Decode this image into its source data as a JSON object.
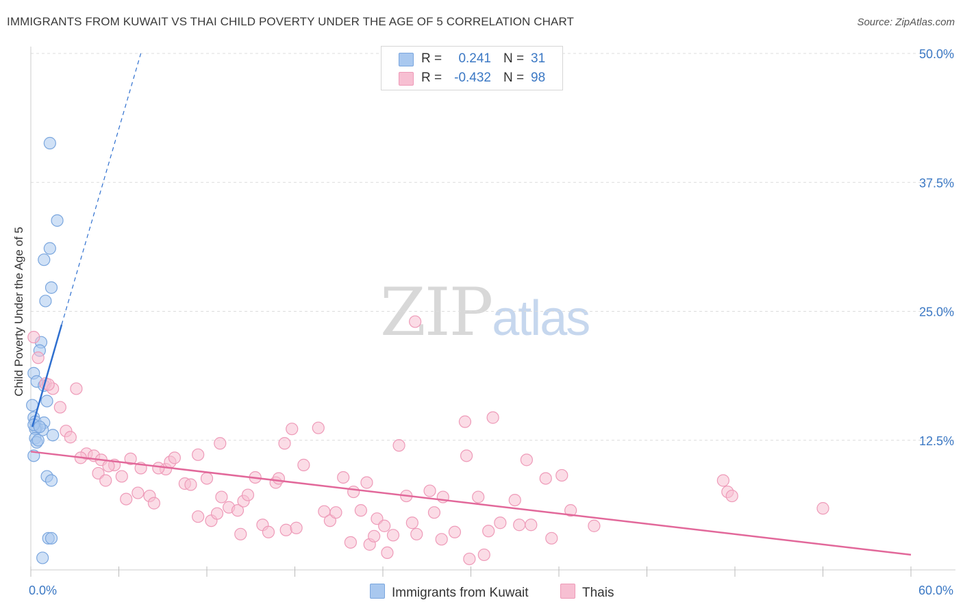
{
  "title": "IMMIGRANTS FROM KUWAIT VS THAI CHILD POVERTY UNDER THE AGE OF 5 CORRELATION CHART",
  "source": "Source: ZipAtlas.com",
  "watermark": {
    "zip": "ZIP",
    "atlas": "atlas"
  },
  "legend": {
    "rows": [
      {
        "r_label": "R =",
        "r_value": "0.241",
        "n_label": "N =",
        "n_value": "31",
        "color": "#a9c8ef",
        "stroke": "#7aa6de"
      },
      {
        "r_label": "R =",
        "r_value": "-0.432",
        "n_label": "N =",
        "n_value": "98",
        "color": "#f7bfd2",
        "stroke": "#ee9ab8"
      }
    ]
  },
  "bottom_legend": [
    {
      "label": "Immigrants from Kuwait",
      "color": "#a9c8ef",
      "stroke": "#7aa6de"
    },
    {
      "label": "Thais",
      "color": "#f7bfd2",
      "stroke": "#ee9ab8"
    }
  ],
  "chart_data": {
    "type": "scatter",
    "title": "IMMIGRANTS FROM KUWAIT VS THAI CHILD POVERTY UNDER THE AGE OF 5 CORRELATION CHART",
    "xlabel": "",
    "ylabel": "Child Poverty Under the Age of 5",
    "xlim": [
      0,
      60
    ],
    "ylim": [
      0,
      50
    ],
    "x_tick_labels": {
      "left": "0.0%",
      "right": "60.0%"
    },
    "y_ticks": [
      {
        "value": 12.5,
        "label": "12.5%"
      },
      {
        "value": 25.0,
        "label": "25.0%"
      },
      {
        "value": 37.5,
        "label": "37.5%"
      },
      {
        "value": 50.0,
        "label": "50.0%"
      }
    ],
    "x_tick_marks": [
      0,
      6,
      12,
      18,
      24,
      30,
      36,
      42,
      48,
      54,
      60
    ],
    "grid": true,
    "series": [
      {
        "name": "Immigrants from Kuwait",
        "color": "#a9c8ef",
        "stroke": "#7aa6de",
        "line_color": "#2e6fcf",
        "trend": {
          "solid": [
            [
              0.1,
              13.8
            ],
            [
              2.1,
              23.7
            ]
          ],
          "dashed": [
            [
              2.1,
              23.7
            ],
            [
              7.5,
              50.0
            ]
          ]
        },
        "points": [
          [
            1.3,
            41.3
          ],
          [
            1.8,
            33.8
          ],
          [
            1.3,
            31.1
          ],
          [
            0.9,
            30.0
          ],
          [
            1.4,
            27.3
          ],
          [
            1.0,
            26.0
          ],
          [
            0.7,
            22.0
          ],
          [
            0.6,
            21.2
          ],
          [
            0.2,
            19.0
          ],
          [
            0.4,
            18.2
          ],
          [
            0.9,
            17.8
          ],
          [
            1.1,
            16.3
          ],
          [
            0.1,
            15.9
          ],
          [
            0.2,
            14.7
          ],
          [
            0.3,
            14.3
          ],
          [
            0.9,
            14.2
          ],
          [
            0.4,
            13.7
          ],
          [
            0.8,
            13.5
          ],
          [
            0.3,
            13.6
          ],
          [
            1.5,
            13.0
          ],
          [
            0.3,
            12.7
          ],
          [
            0.4,
            12.3
          ],
          [
            0.2,
            11.0
          ],
          [
            1.1,
            9.0
          ],
          [
            1.4,
            8.6
          ],
          [
            1.2,
            3.0
          ],
          [
            1.4,
            3.0
          ],
          [
            0.8,
            1.1
          ],
          [
            0.5,
            12.5
          ],
          [
            0.2,
            14.0
          ],
          [
            0.6,
            13.8
          ]
        ]
      },
      {
        "name": "Thais",
        "color": "#f7bfd2",
        "stroke": "#ee9ab8",
        "line_color": "#e2689a",
        "trend": {
          "solid": [
            [
              0.0,
              11.4
            ],
            [
              60.0,
              1.4
            ]
          ]
        },
        "points": [
          [
            0.2,
            22.5
          ],
          [
            0.5,
            20.5
          ],
          [
            1.0,
            18.0
          ],
          [
            1.5,
            17.5
          ],
          [
            3.1,
            17.5
          ],
          [
            2.0,
            15.7
          ],
          [
            2.4,
            13.4
          ],
          [
            2.7,
            12.8
          ],
          [
            3.8,
            11.2
          ],
          [
            4.3,
            11.0
          ],
          [
            3.4,
            10.8
          ],
          [
            4.8,
            10.6
          ],
          [
            5.7,
            10.1
          ],
          [
            5.3,
            10.0
          ],
          [
            4.6,
            9.3
          ],
          [
            6.8,
            10.7
          ],
          [
            7.5,
            9.8
          ],
          [
            6.2,
            9.0
          ],
          [
            5.1,
            8.6
          ],
          [
            6.5,
            6.8
          ],
          [
            7.3,
            7.4
          ],
          [
            8.1,
            7.1
          ],
          [
            8.4,
            6.4
          ],
          [
            9.2,
            9.7
          ],
          [
            9.5,
            10.4
          ],
          [
            9.8,
            10.8
          ],
          [
            10.5,
            8.3
          ],
          [
            10.9,
            8.2
          ],
          [
            11.4,
            11.1
          ],
          [
            12.0,
            8.8
          ],
          [
            11.4,
            5.1
          ],
          [
            12.3,
            4.7
          ],
          [
            12.7,
            5.4
          ],
          [
            13.0,
            7.0
          ],
          [
            13.5,
            6.0
          ],
          [
            14.1,
            5.7
          ],
          [
            12.9,
            12.2
          ],
          [
            14.5,
            6.6
          ],
          [
            14.8,
            7.2
          ],
          [
            14.3,
            3.4
          ],
          [
            15.3,
            8.9
          ],
          [
            15.8,
            4.3
          ],
          [
            16.2,
            3.6
          ],
          [
            16.7,
            8.4
          ],
          [
            16.9,
            8.8
          ],
          [
            17.3,
            12.2
          ],
          [
            17.8,
            13.6
          ],
          [
            17.4,
            3.8
          ],
          [
            18.1,
            4.0
          ],
          [
            18.6,
            10.1
          ],
          [
            19.6,
            13.7
          ],
          [
            20.0,
            5.6
          ],
          [
            20.4,
            4.7
          ],
          [
            20.8,
            5.5
          ],
          [
            21.3,
            8.9
          ],
          [
            21.8,
            2.6
          ],
          [
            22.0,
            7.5
          ],
          [
            22.5,
            5.7
          ],
          [
            22.9,
            8.4
          ],
          [
            23.1,
            2.4
          ],
          [
            23.4,
            3.2
          ],
          [
            23.6,
            4.9
          ],
          [
            24.1,
            4.2
          ],
          [
            24.3,
            1.6
          ],
          [
            24.7,
            3.3
          ],
          [
            25.1,
            12.0
          ],
          [
            25.6,
            7.1
          ],
          [
            26.0,
            4.5
          ],
          [
            26.3,
            3.4
          ],
          [
            26.2,
            24.0
          ],
          [
            27.2,
            7.6
          ],
          [
            27.5,
            5.5
          ],
          [
            28.0,
            2.9
          ],
          [
            28.1,
            7.0
          ],
          [
            28.9,
            3.6
          ],
          [
            29.6,
            14.3
          ],
          [
            29.7,
            11.0
          ],
          [
            29.9,
            1.0
          ],
          [
            30.5,
            7.0
          ],
          [
            30.9,
            1.4
          ],
          [
            31.5,
            14.7
          ],
          [
            31.2,
            3.7
          ],
          [
            32.0,
            4.5
          ],
          [
            33.3,
            4.3
          ],
          [
            33.0,
            6.7
          ],
          [
            33.8,
            10.6
          ],
          [
            34.1,
            4.3
          ],
          [
            35.1,
            8.8
          ],
          [
            35.5,
            3.0
          ],
          [
            36.2,
            9.1
          ],
          [
            36.8,
            5.7
          ],
          [
            38.4,
            4.2
          ],
          [
            47.2,
            8.6
          ],
          [
            47.5,
            7.5
          ],
          [
            47.8,
            7.1
          ],
          [
            54.0,
            5.9
          ],
          [
            1.2,
            17.9
          ],
          [
            8.7,
            9.8
          ]
        ]
      }
    ]
  }
}
